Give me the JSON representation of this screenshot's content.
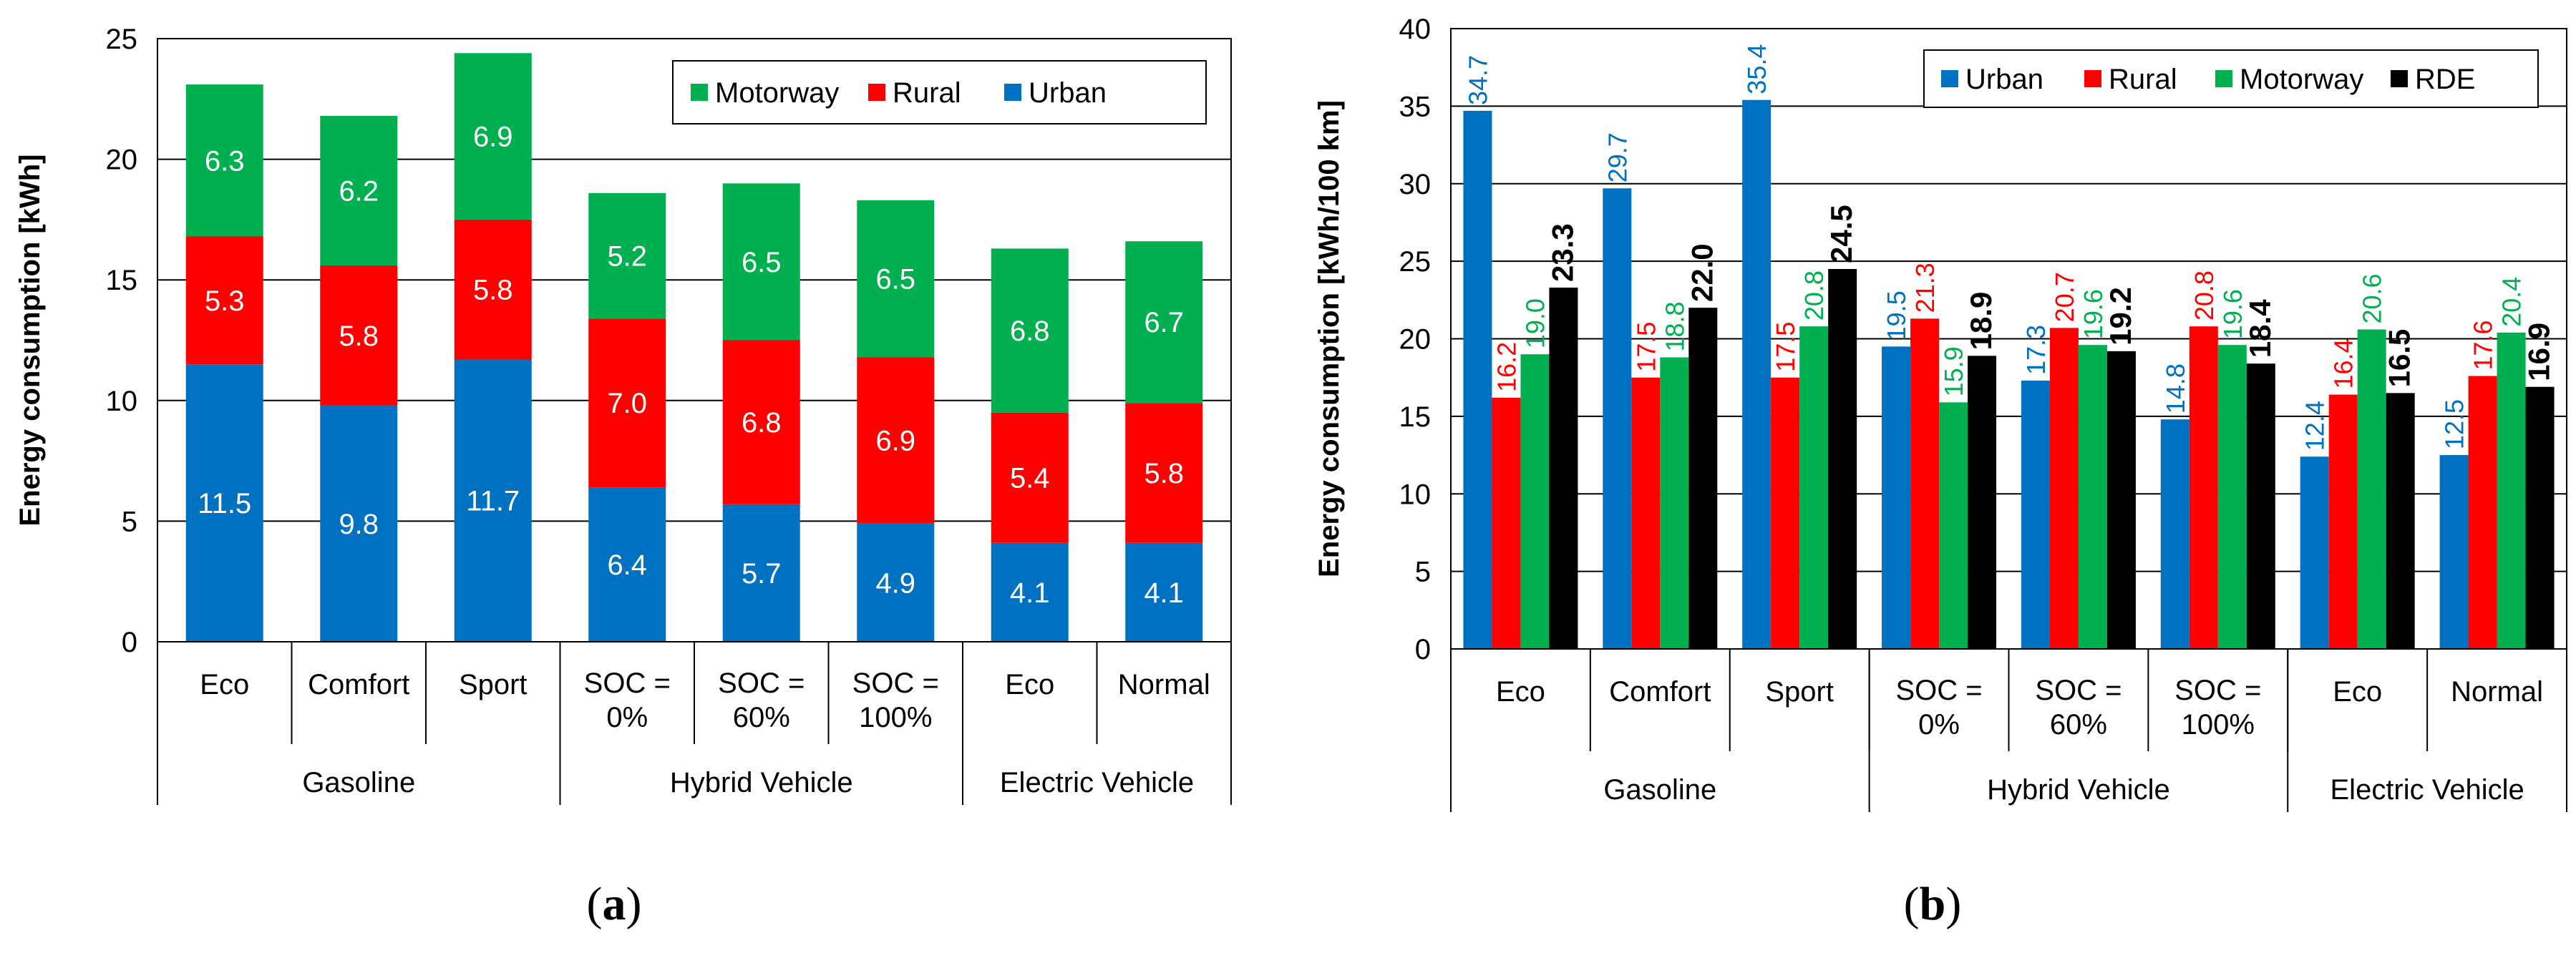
{
  "colors": {
    "urban": "#0070C0",
    "rural": "#FF0000",
    "motorway": "#00B050",
    "rde": "#000000"
  },
  "panels": {
    "a_label_open": "(",
    "a_label_letter": "a",
    "a_label_close": ")",
    "b_label_open": "(",
    "b_label_letter": "b",
    "b_label_close": ")"
  },
  "chart_data": [
    {
      "type": "bar",
      "stacked": true,
      "title": "",
      "ylabel": "Energy consumption [kWh]",
      "ylim": [
        0,
        25
      ],
      "yticks": [
        0,
        5,
        10,
        15,
        20,
        25
      ],
      "grid": true,
      "legend_position": "top-right",
      "legend": [
        "Motorway",
        "Rural",
        "Urban"
      ],
      "categories": [
        "Eco",
        "Comfort",
        "Sport",
        "SOC = 0%",
        "SOC = 60%",
        "SOC = 100%",
        "Eco",
        "Normal"
      ],
      "category_lines": [
        [
          "Eco"
        ],
        [
          "Comfort"
        ],
        [
          "Sport"
        ],
        [
          "SOC =",
          "0%"
        ],
        [
          "SOC =",
          "60%"
        ],
        [
          "SOC =",
          "100%"
        ],
        [
          "Eco"
        ],
        [
          "Normal"
        ]
      ],
      "groups": [
        {
          "name": "Gasoline",
          "span": 3
        },
        {
          "name": "Hybrid Vehicle",
          "span": 3
        },
        {
          "name": "Electric Vehicle",
          "span": 2
        }
      ],
      "series": [
        {
          "name": "Urban",
          "color_key": "urban",
          "values": [
            11.5,
            9.8,
            11.7,
            6.4,
            5.7,
            4.9,
            4.1,
            4.1
          ],
          "labels": [
            "11.5",
            "9.8",
            "11.7",
            "6.4",
            "5.7",
            "4.9",
            "4.1",
            "4.1"
          ]
        },
        {
          "name": "Rural",
          "color_key": "rural",
          "values": [
            5.3,
            5.8,
            5.8,
            7.0,
            6.8,
            6.9,
            5.4,
            5.8
          ],
          "labels": [
            "5.3",
            "5.8",
            "5.8",
            "7.0",
            "6.8",
            "6.9",
            "5.4",
            "5.8"
          ]
        },
        {
          "name": "Motorway",
          "color_key": "motorway",
          "values": [
            6.3,
            6.2,
            6.9,
            5.2,
            6.5,
            6.5,
            6.8,
            6.7
          ],
          "labels": [
            "6.3",
            "6.2",
            "6.9",
            "5.2",
            "6.5",
            "6.5",
            "6.8",
            "6.7"
          ]
        }
      ]
    },
    {
      "type": "bar",
      "stacked": false,
      "title": "",
      "ylabel": "Energy consumption [kWh/100 km]",
      "ylim": [
        0,
        40
      ],
      "yticks": [
        0,
        5,
        10,
        15,
        20,
        25,
        30,
        35,
        40
      ],
      "grid": true,
      "legend_position": "top-right",
      "legend": [
        "Urban",
        "Rural",
        "Motorway",
        "RDE"
      ],
      "categories": [
        "Eco",
        "Comfort",
        "Sport",
        "SOC = 0%",
        "SOC = 60%",
        "SOC = 100%",
        "Eco",
        "Normal"
      ],
      "category_lines": [
        [
          "Eco"
        ],
        [
          "Comfort"
        ],
        [
          "Sport"
        ],
        [
          "SOC =",
          "0%"
        ],
        [
          "SOC =",
          "60%"
        ],
        [
          "SOC =",
          "100%"
        ],
        [
          "Eco"
        ],
        [
          "Normal"
        ]
      ],
      "groups": [
        {
          "name": "Gasoline",
          "span": 3
        },
        {
          "name": "Hybrid Vehicle",
          "span": 3
        },
        {
          "name": "Electric Vehicle",
          "span": 2
        }
      ],
      "series": [
        {
          "name": "Urban",
          "color_key": "urban",
          "values": [
            34.7,
            29.7,
            35.4,
            19.5,
            17.3,
            14.8,
            12.4,
            12.5
          ],
          "labels": [
            "34.7",
            "29.7",
            "35.4",
            "19.5",
            "17.3",
            "14.8",
            "12.4",
            "12.5"
          ]
        },
        {
          "name": "Rural",
          "color_key": "rural",
          "values": [
            16.2,
            17.5,
            17.5,
            21.3,
            20.7,
            20.8,
            16.4,
            17.6
          ],
          "labels": [
            "16.2",
            "17.5",
            "17.5",
            "21.3",
            "20.7",
            "20.8",
            "16.4",
            "17.6"
          ]
        },
        {
          "name": "Motorway",
          "color_key": "motorway",
          "values": [
            19.0,
            18.8,
            20.8,
            15.9,
            19.6,
            19.6,
            20.6,
            20.4
          ],
          "labels": [
            "19.0",
            "18.8",
            "20.8",
            "15.9",
            "19.6",
            "19.6",
            "20.6",
            "20.4"
          ]
        },
        {
          "name": "RDE",
          "color_key": "rde",
          "values": [
            23.3,
            22.0,
            24.5,
            18.9,
            19.2,
            18.4,
            16.5,
            16.9
          ],
          "labels": [
            "23.3",
            "22.0",
            "24.5",
            "18.9",
            "19.2",
            "18.4",
            "16.5",
            "16.9"
          ]
        }
      ]
    }
  ]
}
